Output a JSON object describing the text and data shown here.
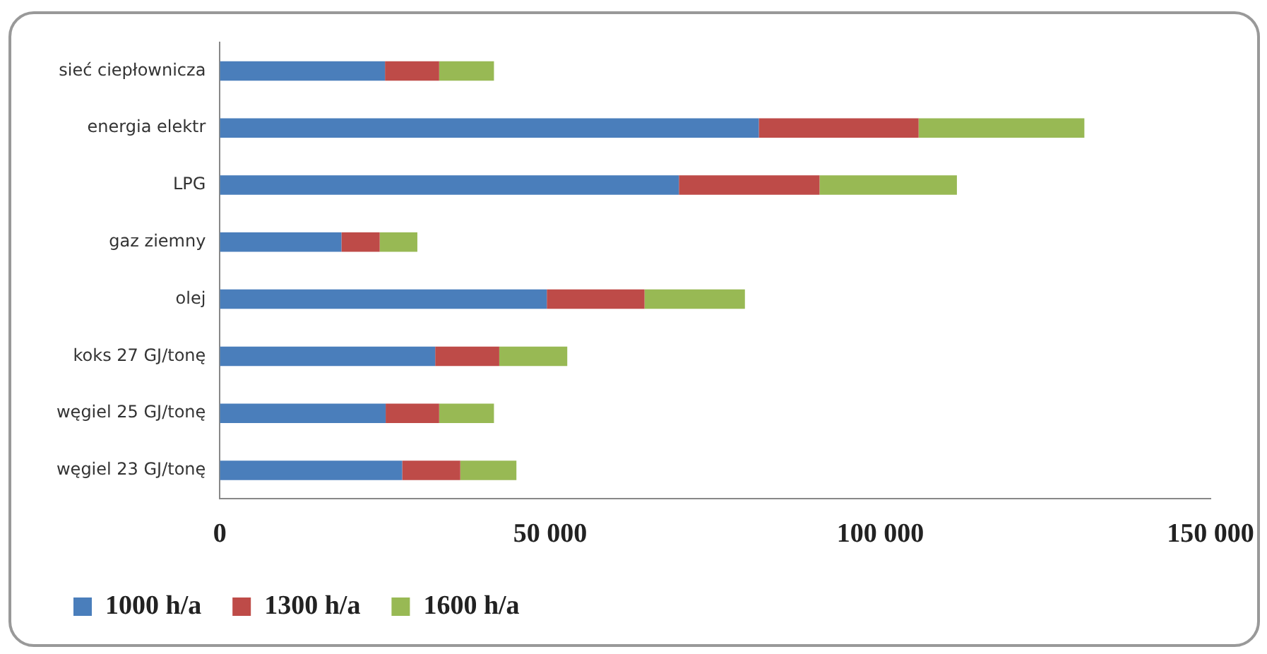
{
  "chart_data": {
    "type": "bar",
    "orientation": "horizontal",
    "stacked": true,
    "categories": [
      "sieć ciepłownicza",
      "energia elektr",
      "LPG",
      "gaz ziemny",
      "olej",
      "koks 27 GJ/tonę",
      "węgiel 25 GJ/tonę",
      "węgiel 23 GJ/tonę"
    ],
    "series": [
      {
        "name": "1000 h/a",
        "color": "#4a7ebb",
        "values": [
          25000,
          81600,
          69500,
          18400,
          49500,
          32600,
          25100,
          27600
        ]
      },
      {
        "name": "1300 h/a",
        "color": "#be4b48",
        "values": [
          8200,
          24200,
          21300,
          5800,
          14800,
          9700,
          8100,
          8800
        ]
      },
      {
        "name": "1600 h/a",
        "color": "#98b954",
        "values": [
          8300,
          25100,
          20800,
          5700,
          15200,
          10300,
          8300,
          8500
        ]
      }
    ],
    "xlim": [
      0,
      150000
    ],
    "xticks": [
      {
        "value": 0,
        "label": "0"
      },
      {
        "value": 50000,
        "label": "50 000"
      },
      {
        "value": 100000,
        "label": "100 000"
      },
      {
        "value": 150000,
        "label": "150 000"
      }
    ],
    "grid": false,
    "legend": "bottom"
  }
}
